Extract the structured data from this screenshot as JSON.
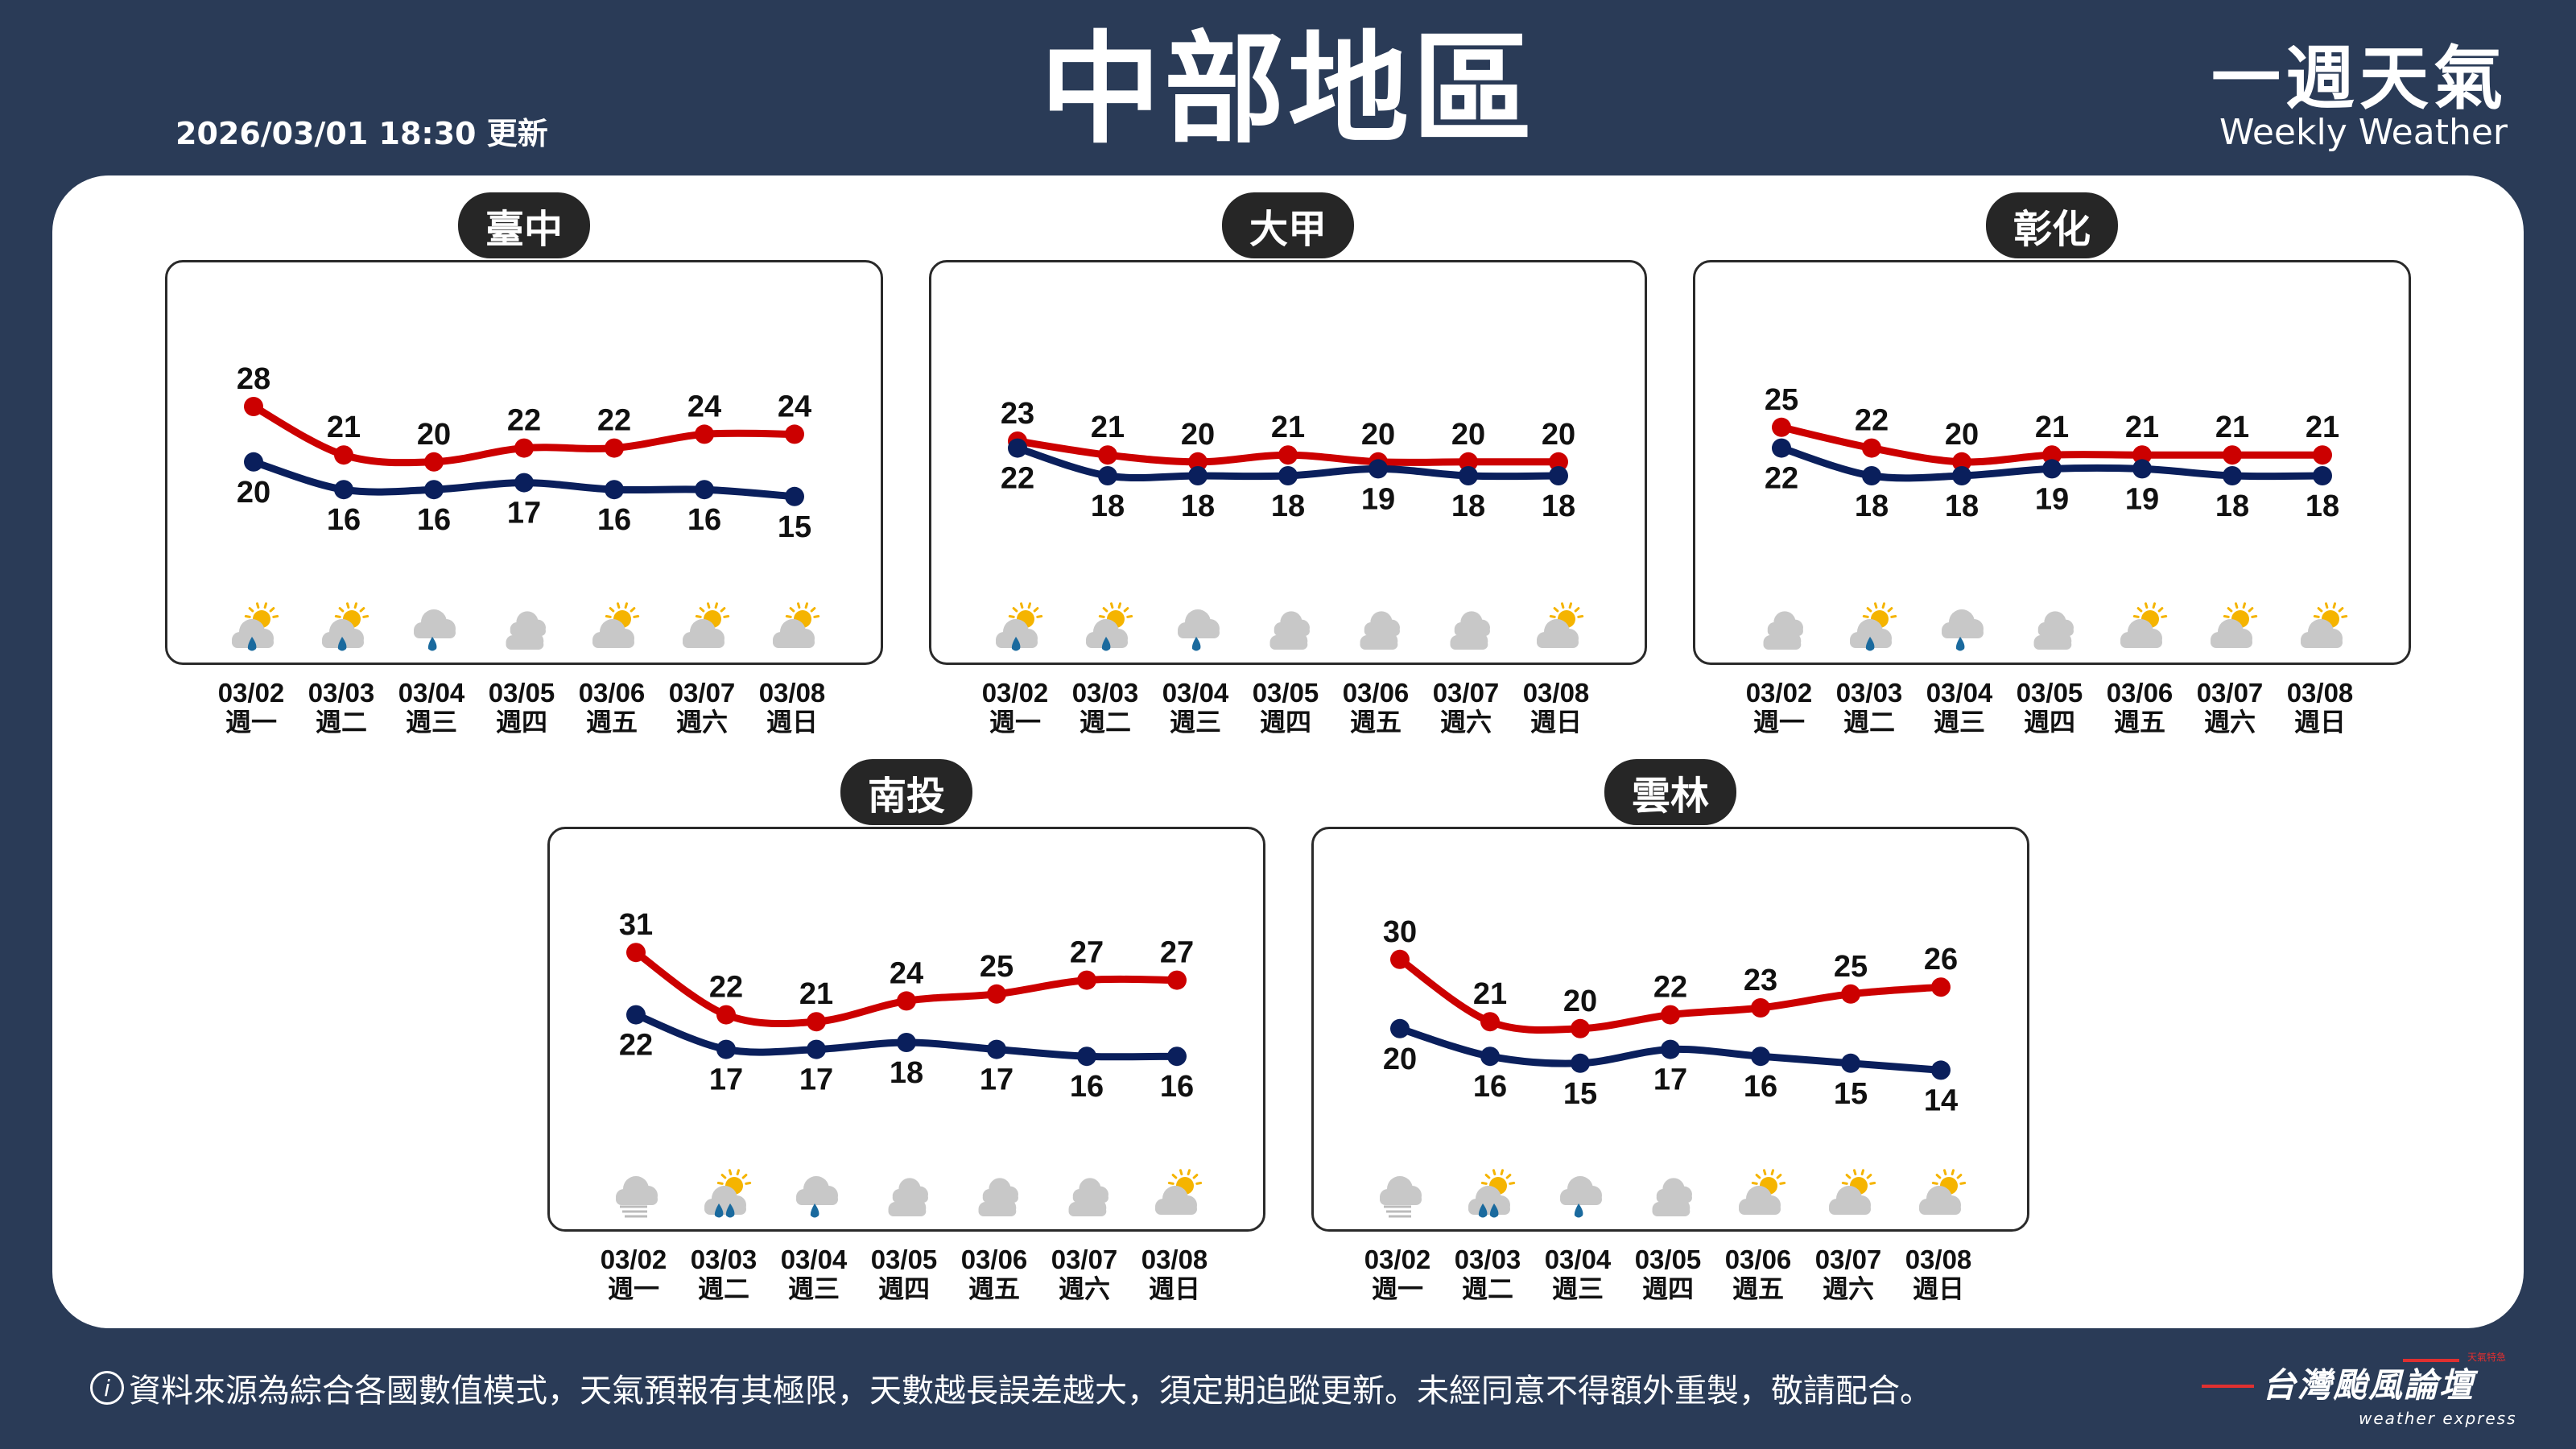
{
  "header": {
    "title": "中部地區",
    "updated": "2026/03/01 18:30 更新",
    "brand_zh": "一週天氣",
    "brand_en": "Weekly Weather"
  },
  "colors": {
    "background": "#2a3b57",
    "high": "#cc0000",
    "low": "#0a1f5c",
    "rain": "#1a6a9e",
    "sun": "#f5b400",
    "cloud": "#c8c8c8"
  },
  "dates": [
    "03/02",
    "03/03",
    "03/04",
    "03/05",
    "03/06",
    "03/07",
    "03/08"
  ],
  "weekdays": [
    "週一",
    "週二",
    "週三",
    "週四",
    "週五",
    "週六",
    "週日"
  ],
  "regions": [
    {
      "name": "臺中",
      "high": [
        28,
        21,
        20,
        22,
        22,
        24,
        24
      ],
      "low": [
        20,
        16,
        16,
        17,
        16,
        16,
        15
      ],
      "icons": [
        "partly-cloudy-rain-icon",
        "partly-cloudy-rain-icon",
        "cloudy-rain-icon",
        "cloudy-icon",
        "partly-cloudy-icon",
        "partly-cloudy-icon",
        "partly-cloudy-icon"
      ]
    },
    {
      "name": "大甲",
      "high": [
        23,
        21,
        20,
        21,
        20,
        20,
        20
      ],
      "low": [
        22,
        18,
        18,
        18,
        19,
        18,
        18
      ],
      "icons": [
        "partly-cloudy-rain-icon",
        "partly-cloudy-rain-icon",
        "cloudy-rain-icon",
        "cloudy-icon",
        "cloudy-icon",
        "cloudy-icon",
        "partly-cloudy-icon"
      ]
    },
    {
      "name": "彰化",
      "high": [
        25,
        22,
        20,
        21,
        21,
        21,
        21
      ],
      "low": [
        22,
        18,
        18,
        19,
        19,
        18,
        18
      ],
      "icons": [
        "cloudy-icon",
        "partly-cloudy-rain-icon",
        "cloudy-rain-icon",
        "cloudy-icon",
        "partly-cloudy-icon",
        "partly-cloudy-icon",
        "partly-cloudy-icon"
      ]
    },
    {
      "name": "南投",
      "high": [
        31,
        22,
        21,
        24,
        25,
        27,
        27
      ],
      "low": [
        22,
        17,
        17,
        18,
        17,
        16,
        16
      ],
      "icons": [
        "fog-icon",
        "partly-cloudy-heavy-rain-icon",
        "cloudy-rain-icon",
        "cloudy-icon",
        "cloudy-icon",
        "cloudy-icon",
        "partly-cloudy-icon"
      ]
    },
    {
      "name": "雲林",
      "high": [
        30,
        21,
        20,
        22,
        23,
        25,
        26
      ],
      "low": [
        20,
        16,
        15,
        17,
        16,
        15,
        14
      ],
      "icons": [
        "fog-icon",
        "partly-cloudy-heavy-rain-icon",
        "cloudy-rain-icon",
        "cloudy-icon",
        "partly-cloudy-icon",
        "partly-cloudy-icon",
        "partly-cloudy-icon"
      ]
    }
  ],
  "footer": {
    "info_icon": "info-icon",
    "text": "資料來源為綜合各國數值模式，天氣預報有其極限，天數越長誤差越大，須定期追蹤更新。未經同意不得額外重製，敬請配合。"
  },
  "logo": {
    "zh": "台灣颱風論壇",
    "en": "weather express",
    "tag": "天氣特急"
  }
}
